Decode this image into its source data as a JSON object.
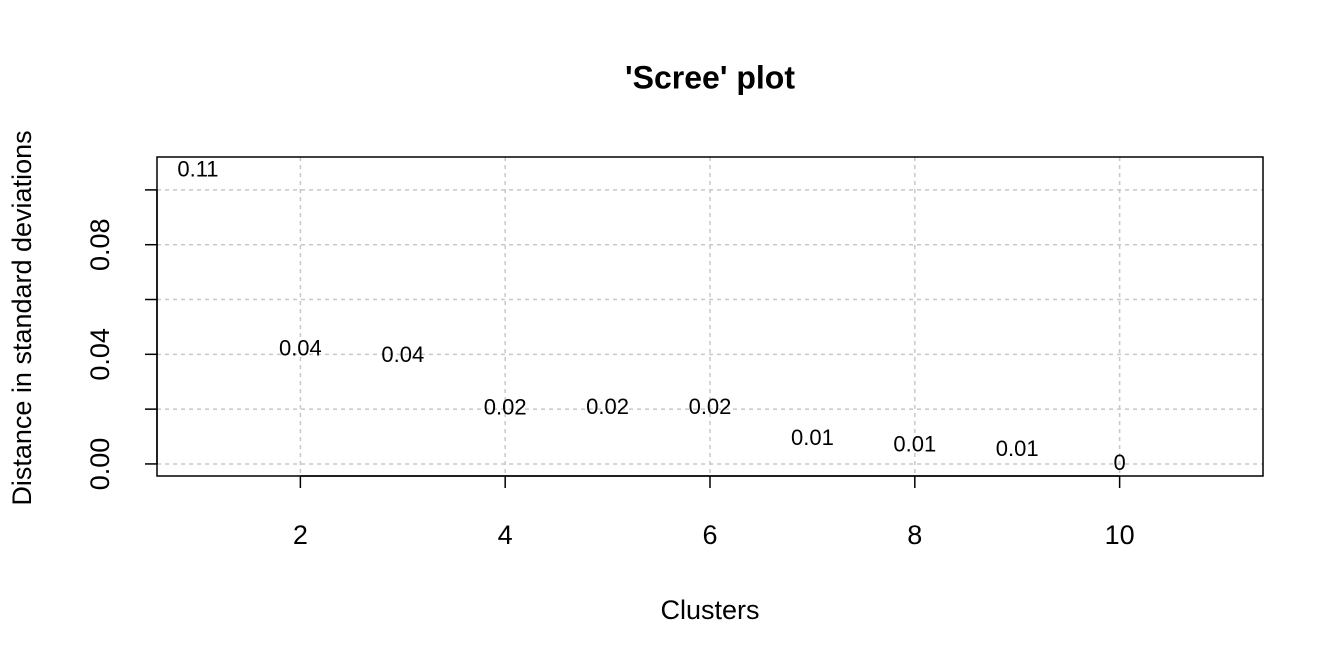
{
  "chart_data": {
    "type": "text-scatter",
    "title": "'Scree' plot",
    "x_label": "Clusters",
    "y_label": "Distance in standard deviations",
    "x": [
      1,
      2,
      3,
      4,
      5,
      6,
      7,
      8,
      9,
      10
    ],
    "values": [
      0.107,
      0.0416,
      0.0394,
      0.0201,
      0.0204,
      0.0204,
      0.0091,
      0.0066,
      0.0051,
      0
    ],
    "value_labels": [
      "0.11",
      "0.04",
      "0.04",
      "0.02",
      "0.02",
      "0.02",
      "0.01",
      "0.01",
      "0.01",
      "0"
    ],
    "color": "#000000",
    "xlim": [
      0.6,
      11.4
    ],
    "ylim": [
      -0.0044,
      0.112
    ],
    "xticks": [
      2,
      4,
      6,
      8,
      10
    ],
    "yticks": [
      {
        "value": 0,
        "label": "0.00"
      },
      {
        "value": 0.02,
        "label": null
      },
      {
        "value": 0.04,
        "label": "0.04"
      },
      {
        "value": 0.06,
        "label": null
      },
      {
        "value": 0.08,
        "label": "0.08"
      },
      {
        "value": 0.1,
        "label": null
      }
    ],
    "grid": true
  }
}
